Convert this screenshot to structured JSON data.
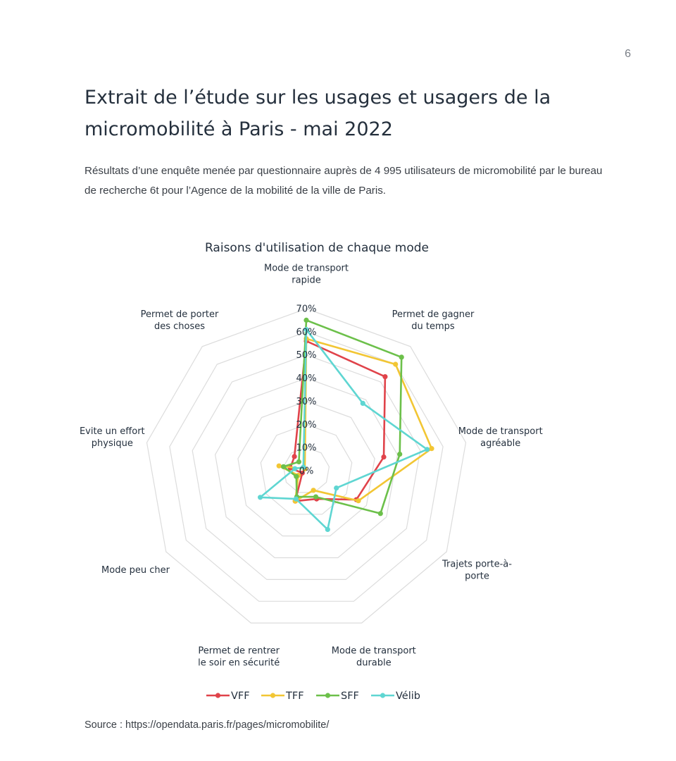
{
  "page": {
    "number": "6",
    "title": "Extrait de l’étude sur les usages et usagers de la micromobilité à Paris - mai 2022",
    "intro": "Résultats d’une enquête menée par questionnaire auprès de 4 995 utilisateurs de micromobilité par le bureau de recherche 6t pour l’Agence de la mobilité de la ville de Paris.",
    "source": "Source : https://opendata.paris.fr/pages/micromobilite/"
  },
  "chart_data": {
    "type": "radar",
    "title": "Raisons d'utilisation de chaque mode",
    "categories": [
      [
        "Mode de transport",
        "rapide"
      ],
      [
        "Permet de gagner",
        "du temps"
      ],
      [
        "Mode de transport",
        "agréable"
      ],
      [
        "Trajets porte-à-",
        "porte"
      ],
      [
        "Mode de transport",
        "durable"
      ],
      [
        "Permet de rentrer",
        "le soir en sécurité"
      ],
      [
        "Mode peu cher"
      ],
      [
        "Evite un effort",
        "physique"
      ],
      [
        "Permet de porter",
        "des choses"
      ]
    ],
    "rlim": [
      0,
      70
    ],
    "ticks": [
      0,
      10,
      20,
      30,
      40,
      50,
      60,
      70
    ],
    "tick_labels": [
      "0%",
      "10%",
      "20%",
      "30%",
      "40%",
      "50%",
      "60%",
      "70%"
    ],
    "grid": true,
    "legend_position": "bottom",
    "series": [
      {
        "name": "VFF",
        "color": "#e0434a",
        "values": [
          56,
          53,
          34,
          25,
          13,
          14,
          2,
          7,
          8
        ]
      },
      {
        "name": "TFF",
        "color": "#f2c634",
        "values": [
          57,
          60,
          55,
          26,
          9,
          14,
          4,
          12,
          1
        ]
      },
      {
        "name": "SFF",
        "color": "#6cc04a",
        "values": [
          65,
          64,
          41,
          37,
          12,
          12,
          5,
          10,
          5
        ]
      },
      {
        "name": "Vélib",
        "color": "#5fd6d2",
        "values": [
          61,
          38,
          53,
          15,
          27,
          13,
          23,
          5,
          2
        ]
      }
    ]
  }
}
